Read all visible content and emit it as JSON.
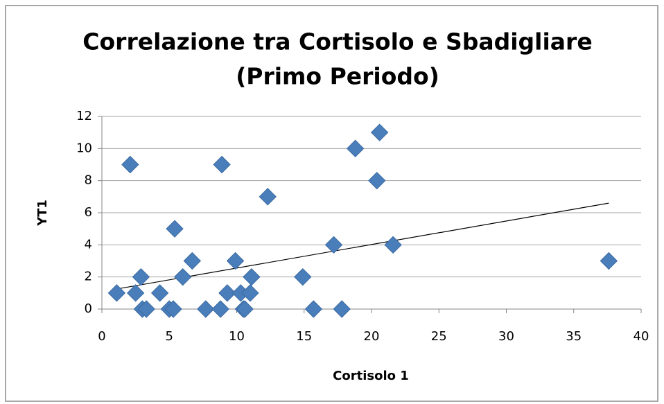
{
  "chart_data": {
    "type": "scatter",
    "title": [
      "Correlazione tra Cortisolo e Sbadigliare",
      "(Primo Periodo)"
    ],
    "x_label": "Cortisolo 1",
    "y_label": "YT1",
    "color": "#4a7ebb",
    "x": [
      1.1,
      2.1,
      2.5,
      2.9,
      3.0,
      3.3,
      4.3,
      5.0,
      5.3,
      5.4,
      6.0,
      6.7,
      7.7,
      8.8,
      8.9,
      9.3,
      9.9,
      10.3,
      10.5,
      10.6,
      11.0,
      11.1,
      12.3,
      14.9,
      15.7,
      17.2,
      17.8,
      18.8,
      20.4,
      20.6,
      21.6,
      37.6
    ],
    "values": [
      1,
      9,
      1,
      2,
      0,
      0,
      1,
      0,
      0,
      5,
      2,
      3,
      0,
      0,
      9,
      1,
      3,
      1,
      0,
      0,
      1,
      2,
      7,
      2,
      0,
      4,
      0,
      10,
      8,
      11,
      4,
      3
    ],
    "trendline": {
      "x": [
        1.1,
        37.6
      ],
      "values": [
        1.25,
        6.6
      ],
      "color": "#000000"
    },
    "xlim": [
      0,
      40
    ],
    "xticks": [
      0,
      5,
      10,
      15,
      20,
      25,
      30,
      35,
      40
    ],
    "ylim": [
      0,
      12
    ],
    "yticks": [
      0,
      2,
      4,
      6,
      8,
      10,
      12
    ],
    "grid": true
  }
}
